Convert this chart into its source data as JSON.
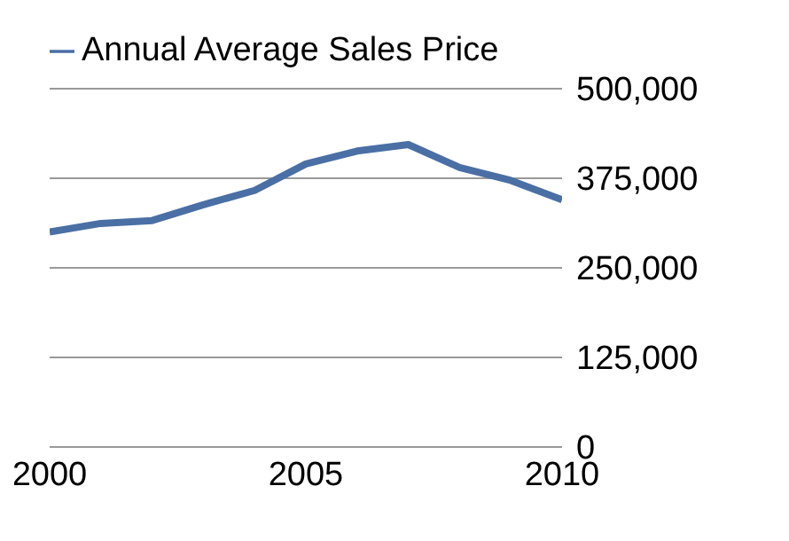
{
  "chart_data": {
    "type": "line",
    "x": [
      2000,
      2001,
      2002,
      2003,
      2004,
      2005,
      2006,
      2007,
      2008,
      2009,
      2010
    ],
    "series": [
      {
        "name": "Annual Average Sales Price",
        "color": "#4a6fa5",
        "values": [
          300000,
          312000,
          316000,
          338000,
          358000,
          395000,
          413000,
          422000,
          390000,
          372000,
          345000
        ]
      }
    ],
    "xlim": [
      2000,
      2010
    ],
    "xticks": [
      2000,
      2005,
      2010
    ],
    "ylim": [
      0,
      500000
    ],
    "yticks": [
      0,
      {
        "value": 125000,
        "label": "125,000"
      },
      {
        "value": 250000,
        "label": "250,000"
      },
      {
        "value": 375000,
        "label": "375,000"
      },
      {
        "value": 500000,
        "label": "500,000"
      }
    ],
    "grid": "y",
    "legend": "top left",
    "marker": "none",
    "line_style": "solid"
  }
}
